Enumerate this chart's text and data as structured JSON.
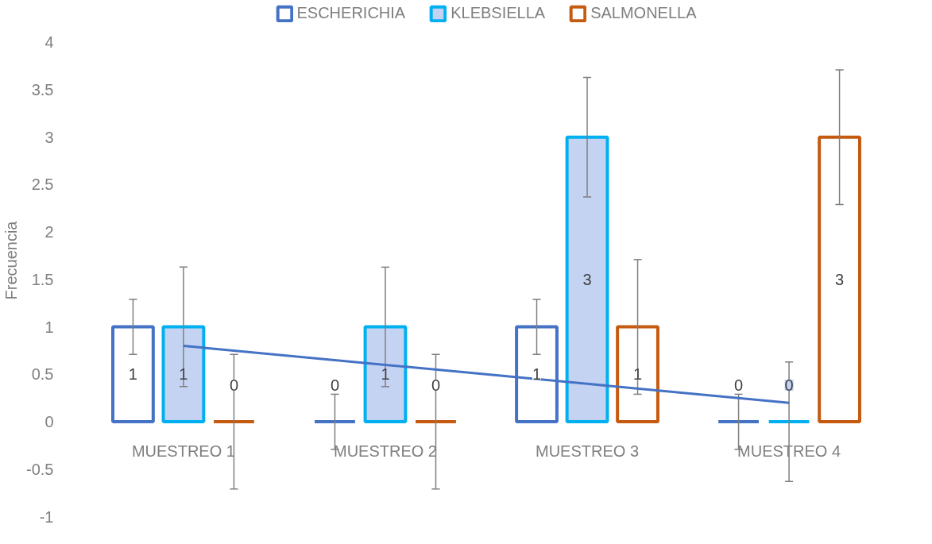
{
  "chart_data": {
    "type": "bar",
    "ylabel": "Frecuencia",
    "categories": [
      "MUESTREO 1",
      "MUESTREO 2",
      "MUESTREO 3",
      "MUESTREO 4"
    ],
    "series": [
      {
        "name": "ESCHERICHIA",
        "color": "#4472c4",
        "values": [
          1,
          0,
          1,
          0
        ],
        "value_labels": [
          "1",
          "0",
          "1",
          "0"
        ],
        "errors": [
          0.29,
          0.29,
          0.29,
          0.29
        ]
      },
      {
        "name": "KLEBSIELLA",
        "color": "#00b0f0",
        "values": [
          1,
          1,
          3,
          0
        ],
        "value_labels": [
          "1",
          "1",
          "3",
          "0"
        ],
        "errors": [
          0.63,
          0.63,
          0.63,
          0.63
        ]
      },
      {
        "name": "SALMONELLA",
        "color": "#c55a11",
        "values": [
          0,
          0,
          1,
          3
        ],
        "value_labels": [
          "0",
          "0",
          "1",
          "3"
        ],
        "errors": [
          0.71,
          0.71,
          0.71,
          0.71
        ]
      },
      {
        "type": "line",
        "color": "#4472c4",
        "values": [
          0.8,
          0.6,
          0.4,
          0.2
        ]
      }
    ],
    "ylim": [
      -1,
      4.4
    ],
    "yticks": [
      -1,
      -0.5,
      0,
      0.5,
      1,
      1.5,
      2,
      2.5,
      3,
      3.5,
      4
    ],
    "legend": "top",
    "grid": false
  }
}
